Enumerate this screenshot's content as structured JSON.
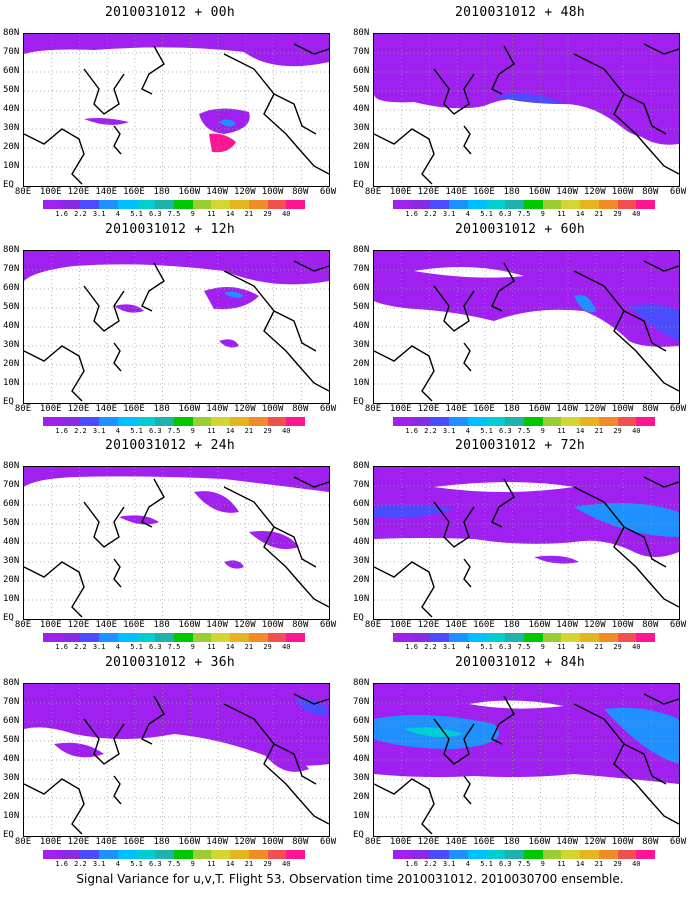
{
  "panels": [
    {
      "title": "2010031012 + 00h"
    },
    {
      "title": "2010031012 + 48h"
    },
    {
      "title": "2010031012 + 12h"
    },
    {
      "title": "2010031012 + 60h"
    },
    {
      "title": "2010031012 + 24h"
    },
    {
      "title": "2010031012 + 72h"
    },
    {
      "title": "2010031012 + 36h"
    },
    {
      "title": "2010031012 + 84h"
    }
  ],
  "lat_labels": [
    "80N",
    "70N",
    "60N",
    "50N",
    "40N",
    "30N",
    "20N",
    "10N",
    "EQ"
  ],
  "lon_labels": [
    "80E",
    "100E",
    "120E",
    "140E",
    "160E",
    "180",
    "160W",
    "140W",
    "120W",
    "100W",
    "80W",
    "60W"
  ],
  "colorbar": {
    "labels": [
      "1.6",
      "2.2",
      "3.1",
      "4",
      "5.1",
      "6.3",
      "7.5",
      "9",
      "11",
      "14",
      "21",
      "29",
      "40"
    ],
    "colors": [
      "#a020f0",
      "#8a2be2",
      "#4b4bff",
      "#1e90ff",
      "#00bfff",
      "#00ced1",
      "#20b2aa",
      "#00c800",
      "#9acd32",
      "#d4d432",
      "#e6b41e",
      "#f08c28",
      "#f05050",
      "#ff1493"
    ]
  },
  "caption": "Signal Variance for u,v,T. Flight 53. Observation time 2010031012. 2010030700 ensemble."
}
